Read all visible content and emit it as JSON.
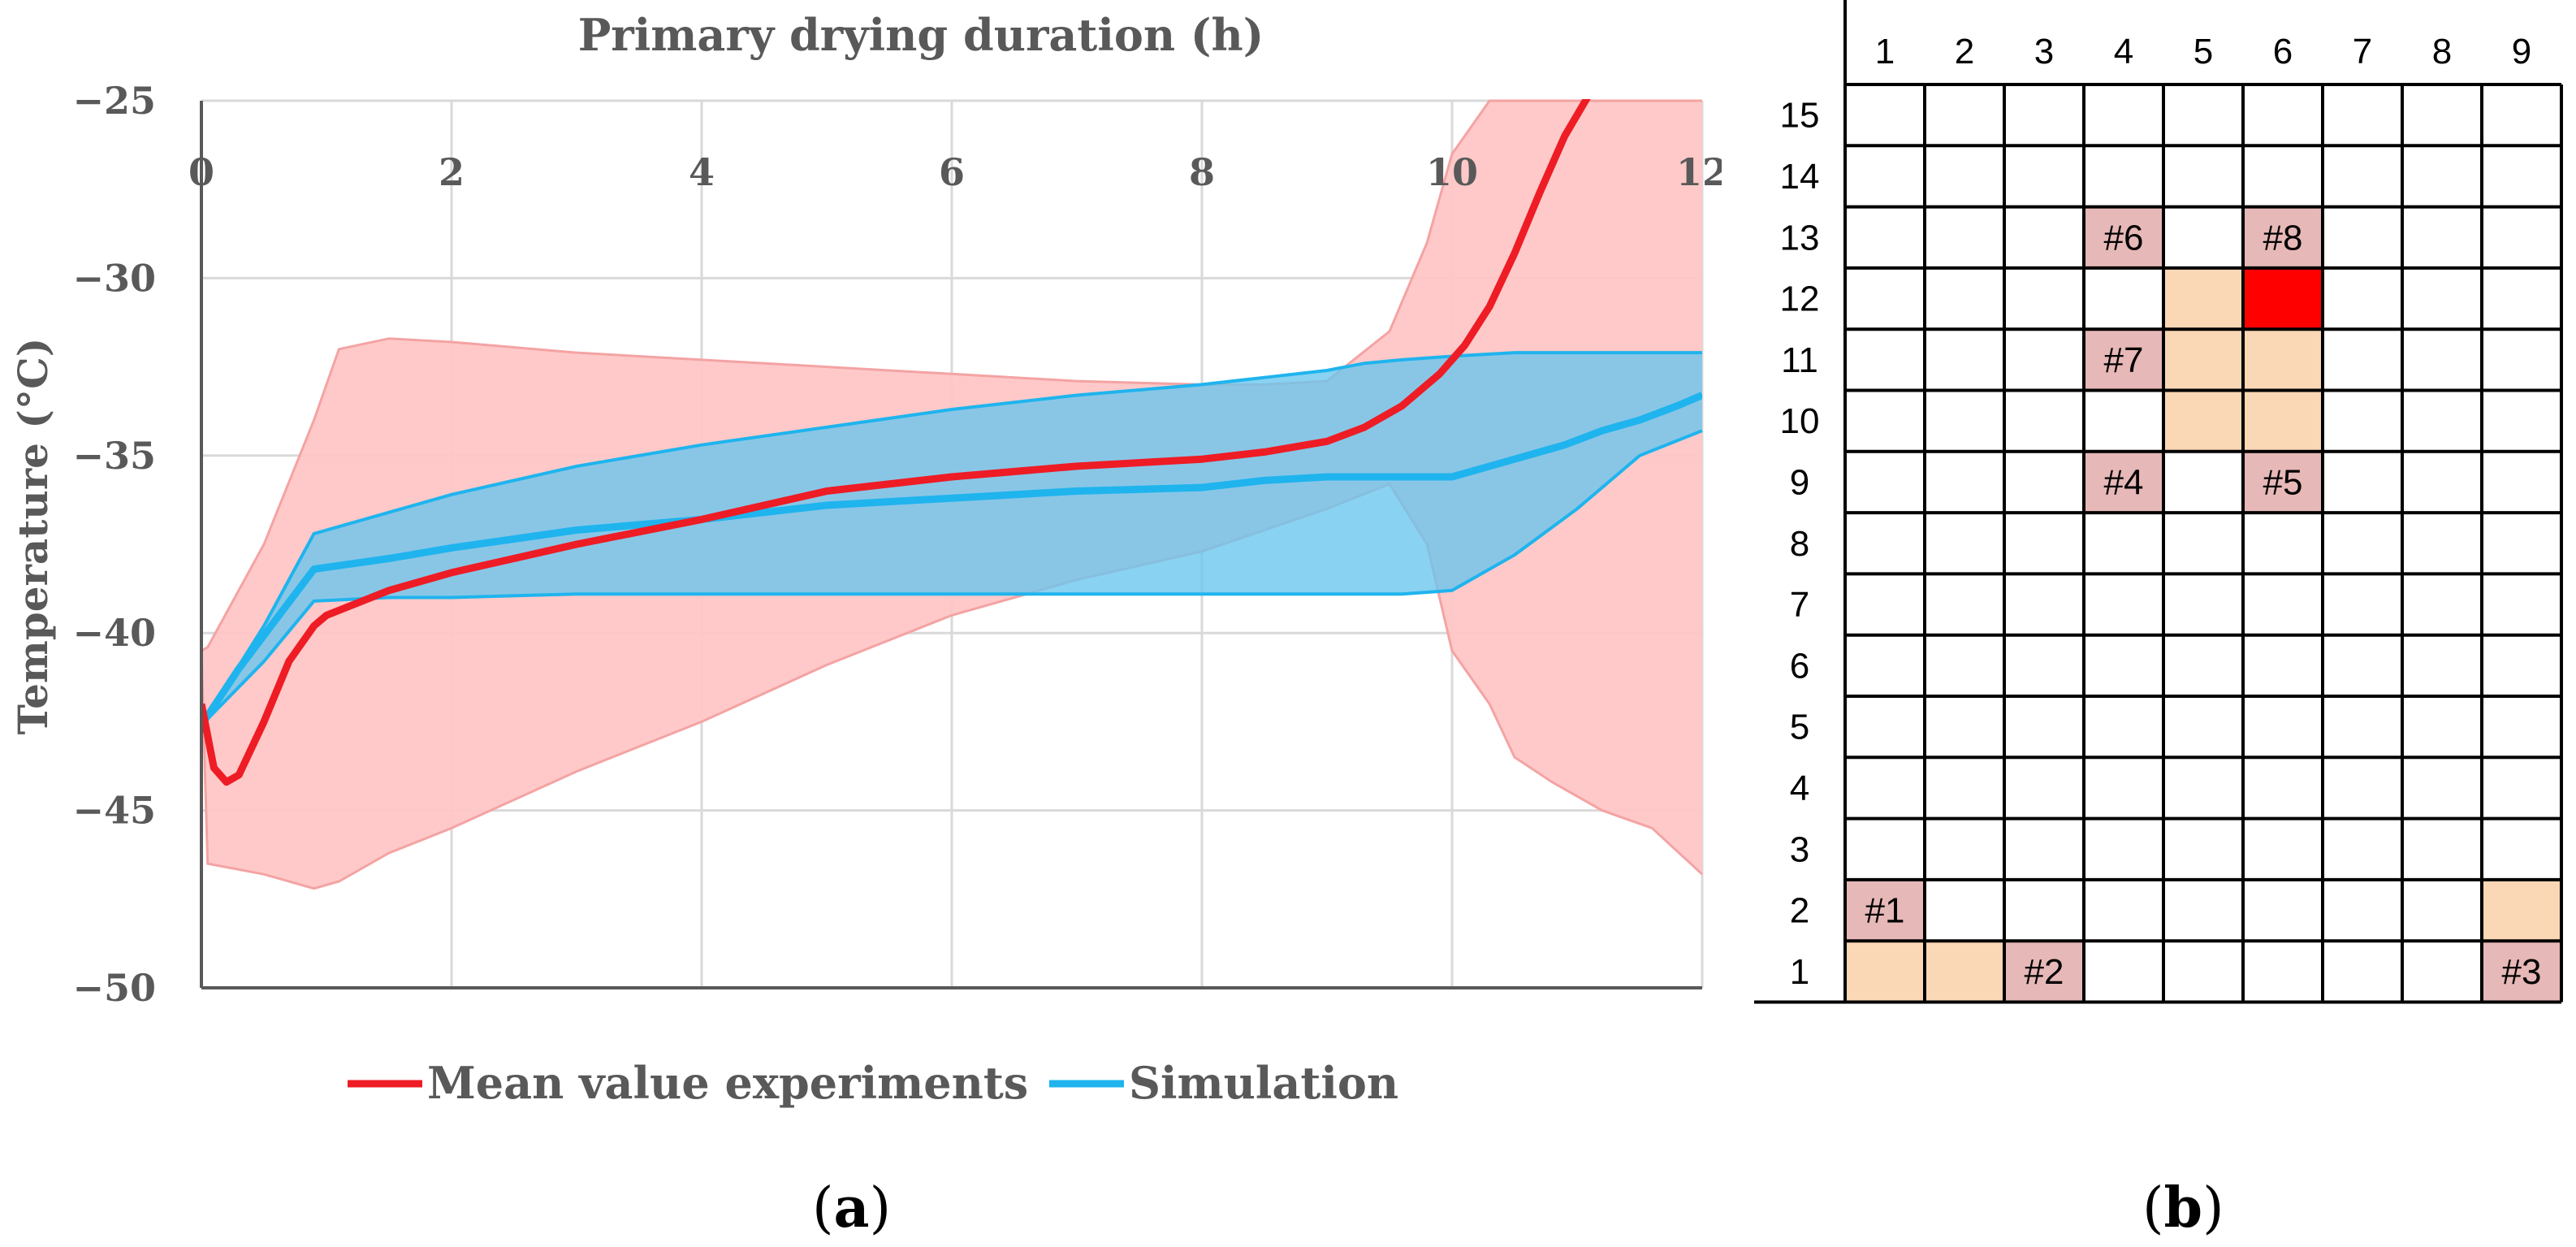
{
  "colors": {
    "mean_line": "#ee1c25",
    "mean_band": "#ffc6c6",
    "sim_line": "#1fb4ee",
    "sim_band": "#68c5ee",
    "overlap_band": "#4a9ec8",
    "grid": "#d9d9d9",
    "cell_peach": "#fad7b5",
    "cell_pink": "#e6b8b7",
    "cell_red": "#ff0000"
  },
  "chart_data": {
    "type": "line",
    "title": "Primary drying duration (h)",
    "xlabel": "",
    "ylabel": "Temperature (°C)",
    "xlim": [
      0,
      12
    ],
    "ylim": [
      -50,
      -25
    ],
    "x_ticks": [
      "0",
      "2",
      "4",
      "6",
      "8",
      "10",
      "12"
    ],
    "y_ticks": [
      "−25",
      "−30",
      "−35",
      "−40",
      "−45",
      "−50"
    ],
    "grid": true,
    "legend_position": "bottom",
    "series": [
      {
        "name": "Mean value experiments",
        "x": [
          0,
          0.1,
          0.2,
          0.3,
          0.5,
          0.7,
          0.9,
          1.0,
          1.5,
          2,
          3,
          4,
          5,
          6,
          7,
          8,
          8.5,
          9,
          9.3,
          9.6,
          9.9,
          10.1,
          10.3,
          10.5,
          10.7,
          10.9,
          11.1
        ],
        "y": [
          -42.0,
          -43.8,
          -44.2,
          -44.0,
          -42.5,
          -40.8,
          -39.8,
          -39.5,
          -38.8,
          -38.3,
          -37.5,
          -36.8,
          -36.0,
          -35.6,
          -35.3,
          -35.1,
          -34.9,
          -34.6,
          -34.2,
          -33.6,
          -32.7,
          -31.9,
          -30.8,
          -29.3,
          -27.6,
          -26.0,
          -24.8
        ]
      },
      {
        "name": "Simulation",
        "x": [
          0,
          0.3,
          0.6,
          0.9,
          1.5,
          2,
          3,
          4,
          5,
          6,
          7,
          8,
          8.5,
          9,
          9.5,
          10,
          10.3,
          10.6,
          10.9,
          11.2,
          11.5,
          11.8,
          12
        ],
        "y": [
          -42.6,
          -41.0,
          -39.6,
          -38.2,
          -37.9,
          -37.6,
          -37.1,
          -36.8,
          -36.4,
          -36.2,
          -36.0,
          -35.9,
          -35.7,
          -35.6,
          -35.6,
          -35.6,
          -35.3,
          -35.0,
          -34.7,
          -34.3,
          -34.0,
          -33.6,
          -33.3
        ]
      }
    ],
    "bands": [
      {
        "series": "Mean value experiments",
        "x": [
          0,
          0.05,
          0.5,
          0.9,
          1.1,
          1.5,
          2,
          3,
          4,
          5,
          6,
          7,
          8,
          8.5,
          9,
          9.5,
          9.8,
          10,
          10.3,
          10.5,
          10.8,
          11.2,
          11.6,
          12
        ],
        "upper": [
          -40.5,
          -40.4,
          -37.5,
          -34.0,
          -32.0,
          -31.7,
          -31.8,
          -32.1,
          -32.3,
          -32.5,
          -32.7,
          -32.9,
          -33.0,
          -33.0,
          -32.9,
          -31.5,
          -29.0,
          -26.5,
          -25.0,
          -25.0,
          -25.0,
          -25.0,
          -25.0,
          -25.0
        ],
        "lower": [
          -40.5,
          -46.5,
          -46.8,
          -47.2,
          -47.0,
          -46.2,
          -45.5,
          -43.9,
          -42.5,
          -40.9,
          -39.5,
          -38.5,
          -37.7,
          -37.1,
          -36.5,
          -35.8,
          -37.5,
          -40.5,
          -42.0,
          -43.5,
          -44.2,
          -45.0,
          -45.5,
          -46.8
        ]
      },
      {
        "series": "Simulation",
        "x": [
          0,
          0.5,
          0.9,
          1.5,
          2,
          3,
          4,
          5,
          6,
          7,
          8,
          8.5,
          9,
          9.3,
          9.6,
          10,
          10.5,
          11,
          11.5,
          12
        ],
        "upper": [
          -42.6,
          -39.8,
          -37.2,
          -36.6,
          -36.1,
          -35.3,
          -34.7,
          -34.2,
          -33.7,
          -33.3,
          -33.0,
          -32.8,
          -32.6,
          -32.4,
          -32.3,
          -32.2,
          -32.1,
          -32.1,
          -32.1,
          -32.1
        ],
        "lower": [
          -42.6,
          -40.8,
          -39.1,
          -39.0,
          -39.0,
          -38.9,
          -38.9,
          -38.9,
          -38.9,
          -38.9,
          -38.9,
          -38.9,
          -38.9,
          -38.9,
          -38.9,
          -38.8,
          -37.8,
          -36.5,
          -35.0,
          -34.3
        ]
      }
    ]
  },
  "legend": {
    "mean_label": "Mean value experiments",
    "sim_label": "Simulation"
  },
  "captions": {
    "a": "a",
    "b": "b",
    "open": "(",
    "close": ")"
  },
  "shelf_grid": {
    "columns": [
      "1",
      "2",
      "3",
      "4",
      "5",
      "6",
      "7",
      "8",
      "9"
    ],
    "rows": [
      "15",
      "14",
      "13",
      "12",
      "11",
      "10",
      "9",
      "8",
      "7",
      "6",
      "5",
      "4",
      "3",
      "2",
      "1"
    ],
    "cells": [
      {
        "row": "13",
        "col": "4",
        "fill": "pink",
        "label": "#6"
      },
      {
        "row": "13",
        "col": "6",
        "fill": "pink",
        "label": "#8"
      },
      {
        "row": "12",
        "col": "5",
        "fill": "peach",
        "label": ""
      },
      {
        "row": "12",
        "col": "6",
        "fill": "red",
        "label": ""
      },
      {
        "row": "11",
        "col": "4",
        "fill": "pink",
        "label": "#7"
      },
      {
        "row": "11",
        "col": "5",
        "fill": "peach",
        "label": ""
      },
      {
        "row": "11",
        "col": "6",
        "fill": "peach",
        "label": ""
      },
      {
        "row": "10",
        "col": "5",
        "fill": "peach",
        "label": ""
      },
      {
        "row": "10",
        "col": "6",
        "fill": "peach",
        "label": ""
      },
      {
        "row": "9",
        "col": "4",
        "fill": "pink",
        "label": "#4"
      },
      {
        "row": "9",
        "col": "6",
        "fill": "pink",
        "label": "#5"
      },
      {
        "row": "2",
        "col": "1",
        "fill": "pink",
        "label": "#1"
      },
      {
        "row": "2",
        "col": "9",
        "fill": "peach",
        "label": ""
      },
      {
        "row": "1",
        "col": "1",
        "fill": "peach",
        "label": ""
      },
      {
        "row": "1",
        "col": "2",
        "fill": "peach",
        "label": ""
      },
      {
        "row": "1",
        "col": "3",
        "fill": "pink",
        "label": "#2"
      },
      {
        "row": "1",
        "col": "9",
        "fill": "pink",
        "label": "#3"
      }
    ]
  }
}
